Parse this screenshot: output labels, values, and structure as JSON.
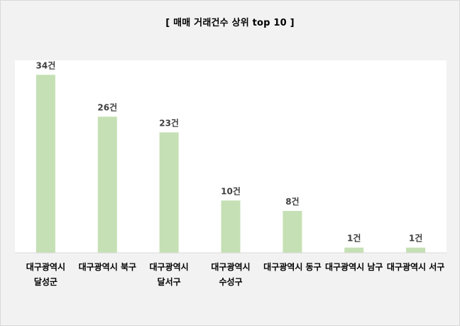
{
  "chart_data": {
    "type": "bar",
    "title": "[ 매매 거래건수 상위 top 10 ]",
    "categories": [
      [
        "대구광역시",
        "달성군"
      ],
      [
        "대구광역시 북구"
      ],
      [
        "대구광역시",
        "달서구"
      ],
      [
        "대구광역시",
        "수성구"
      ],
      [
        "대구광역시 동구"
      ],
      [
        "대구광역시 남구"
      ],
      [
        "대구광역시 서구"
      ]
    ],
    "values": [
      34,
      26,
      23,
      10,
      8,
      1,
      1
    ],
    "data_labels": [
      "34건",
      "26건",
      "23건",
      "10건",
      "8건",
      "1건",
      "1건"
    ],
    "xlabel": "",
    "ylabel": "",
    "ylim": [
      0,
      40
    ],
    "grid": false,
    "legend": "none",
    "colors": {
      "bar": "#c5e0b4",
      "plot_background": "#ffffff",
      "chart_background": "#f2f2f2",
      "axis_line": "#d9d9d9"
    }
  }
}
